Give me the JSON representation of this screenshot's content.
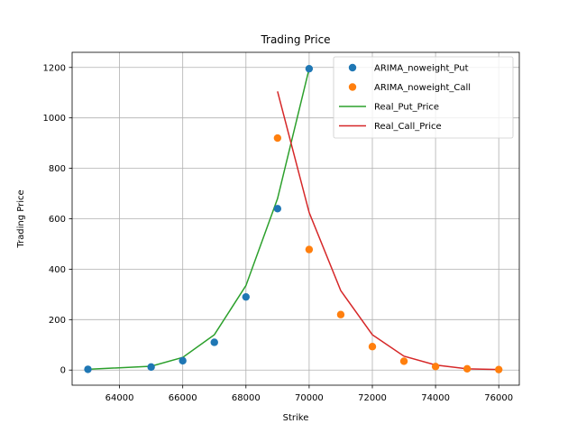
{
  "chart_data": {
    "type": "line",
    "title": "Trading Price",
    "xlabel": "Strike",
    "ylabel": "Trading Price",
    "xlim": [
      62500,
      76650
    ],
    "ylim": [
      -60,
      1260
    ],
    "xticks": [
      64000,
      66000,
      68000,
      70000,
      72000,
      74000,
      76000
    ],
    "yticks": [
      0,
      200,
      400,
      600,
      800,
      1000,
      1200
    ],
    "grid": true,
    "legend_position": "top-right",
    "series": [
      {
        "name": "ARIMA_noweight_Put",
        "style": "marker",
        "color": "#1f77b4",
        "x": [
          63000,
          65000,
          66000,
          67000,
          68000,
          69000,
          70000
        ],
        "y": [
          3,
          12,
          37,
          110,
          290,
          640,
          1195
        ]
      },
      {
        "name": "ARIMA_noweight_Call",
        "style": "marker",
        "color": "#ff7f0e",
        "x": [
          69000,
          70000,
          71000,
          72000,
          73000,
          74000,
          75000,
          76000
        ],
        "y": [
          920,
          478,
          220,
          93,
          35,
          14,
          5,
          2
        ]
      },
      {
        "name": "Real_Put_Price",
        "style": "line",
        "color": "#2ca02c",
        "x": [
          63000,
          65000,
          66000,
          67000,
          68000,
          69000,
          70000
        ],
        "y": [
          3,
          15,
          50,
          140,
          335,
          680,
          1195
        ]
      },
      {
        "name": "Real_Call_Price",
        "style": "line",
        "color": "#d62728",
        "x": [
          69000,
          70000,
          71000,
          72000,
          73000,
          74000,
          75000,
          76000
        ],
        "y": [
          1105,
          625,
          315,
          140,
          55,
          20,
          5,
          2
        ]
      }
    ]
  }
}
